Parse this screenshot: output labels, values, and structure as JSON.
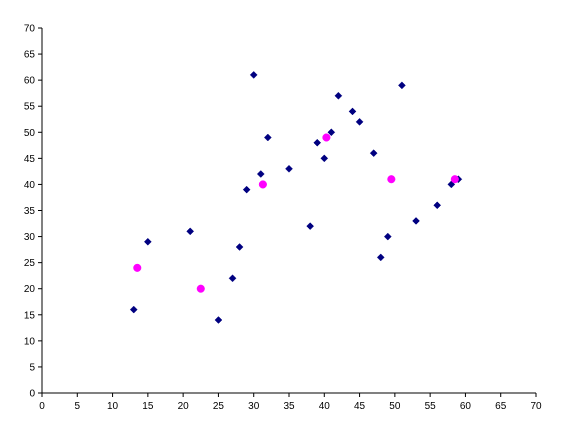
{
  "chart_data": {
    "type": "scatter",
    "title": "",
    "xlabel": "",
    "ylabel": "",
    "xlim": [
      0,
      70
    ],
    "ylim": [
      0,
      70
    ],
    "x_ticks": [
      0,
      5,
      10,
      15,
      20,
      25,
      30,
      35,
      40,
      45,
      50,
      55,
      60,
      65,
      70
    ],
    "y_ticks": [
      0,
      5,
      10,
      15,
      20,
      25,
      30,
      35,
      40,
      45,
      50,
      55,
      60,
      65,
      70
    ],
    "grid": false,
    "legend": "none",
    "series": [
      {
        "marker": "diamond",
        "color": "#000080",
        "points": [
          [
            13,
            16
          ],
          [
            15,
            29
          ],
          [
            21,
            31
          ],
          [
            25,
            14
          ],
          [
            27,
            22
          ],
          [
            28,
            28
          ],
          [
            29,
            39
          ],
          [
            30,
            61
          ],
          [
            31,
            42
          ],
          [
            32,
            49
          ],
          [
            35,
            43
          ],
          [
            38,
            32
          ],
          [
            39,
            48
          ],
          [
            40,
            45
          ],
          [
            41,
            50
          ],
          [
            42,
            57
          ],
          [
            44,
            54
          ],
          [
            45,
            52
          ],
          [
            47,
            46
          ],
          [
            48,
            26
          ],
          [
            49,
            30
          ],
          [
            51,
            59
          ],
          [
            53,
            33
          ],
          [
            56,
            36
          ],
          [
            58,
            40
          ],
          [
            59,
            41
          ]
        ]
      },
      {
        "marker": "circle",
        "color": "#ff00ff",
        "points": [
          [
            13.5,
            24
          ],
          [
            22.5,
            20
          ],
          [
            31.3,
            40
          ],
          [
            40.3,
            49
          ],
          [
            49.5,
            41
          ],
          [
            58.5,
            41
          ]
        ]
      }
    ]
  }
}
